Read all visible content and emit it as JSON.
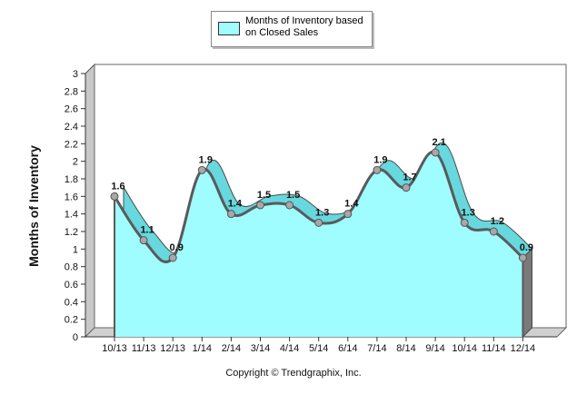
{
  "legend": {
    "label": "Months of Inventory based on Closed Sales"
  },
  "copyright": "Copyright © Trendgraphix, Inc.",
  "colors": {
    "fill": "#9ffcff",
    "side": "#66d8de",
    "line": "#5a5a5a",
    "marker": "#a8a8a8",
    "wall": "#c8c8c8"
  },
  "chart_data": {
    "type": "area",
    "categories": [
      "10/13",
      "11/13",
      "12/13",
      "1/14",
      "2/14",
      "3/14",
      "4/14",
      "5/14",
      "6/14",
      "7/14",
      "8/14",
      "9/14",
      "10/14",
      "11/14",
      "12/14"
    ],
    "series": [
      {
        "name": "Months of Inventory based on Closed Sales",
        "values": [
          1.6,
          1.1,
          0.9,
          1.9,
          1.4,
          1.5,
          1.5,
          1.3,
          1.4,
          1.9,
          1.7,
          2.1,
          1.3,
          1.2,
          0.9
        ]
      }
    ],
    "data_labels": [
      "1.6",
      "1.1",
      "0.9",
      "1.9",
      "1.4",
      "1.5",
      "1.5",
      "1.3",
      "1.4",
      "1.9",
      "1.7",
      "2.1",
      "1.3",
      "1.2",
      "0.9"
    ],
    "ylabel": "Months of Inventory",
    "xlabel": "",
    "ylim": [
      0,
      3
    ],
    "yticks": [
      "0",
      "0.2",
      "0.4",
      "0.6",
      "0.8",
      "1",
      "1.2",
      "1.4",
      "1.6",
      "1.8",
      "2",
      "2.2",
      "2.4",
      "2.6",
      "2.8",
      "3"
    ],
    "grid": false,
    "legend_position": "top-center"
  }
}
